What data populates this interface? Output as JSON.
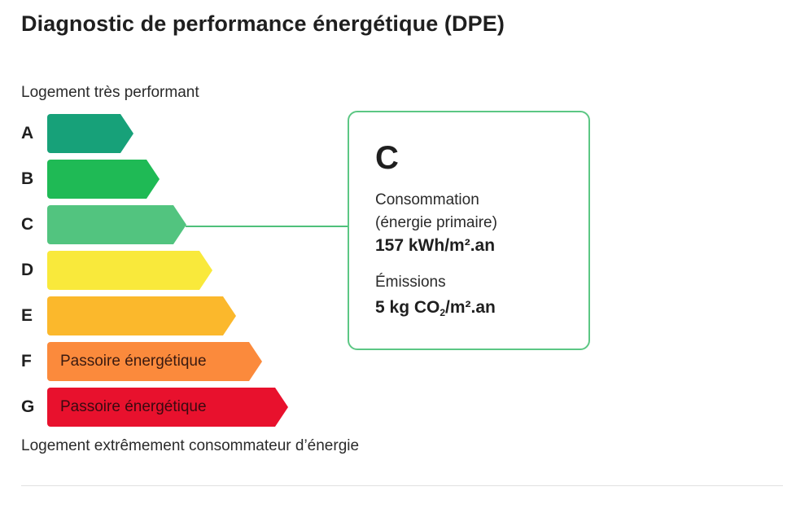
{
  "title": "Diagnostic de performance énergétique (DPE)",
  "caption_top": "Logement très performant",
  "caption_bottom": "Logement extrêmement consommateur d’énergie",
  "classes": [
    {
      "letter": "A",
      "color": "#17a179",
      "label": "",
      "width_frac": 0.33
    },
    {
      "letter": "B",
      "color": "#1fba55",
      "label": "",
      "width_frac": 0.43
    },
    {
      "letter": "C",
      "color": "#52c47f",
      "label": "",
      "width_frac": 0.53
    },
    {
      "letter": "D",
      "color": "#f9e93b",
      "label": "",
      "width_frac": 0.63
    },
    {
      "letter": "E",
      "color": "#fbb82c",
      "label": "",
      "width_frac": 0.72
    },
    {
      "letter": "F",
      "color": "#fb8a3c",
      "label": "Passoire énergétique",
      "width_frac": 0.82
    },
    {
      "letter": "G",
      "color": "#e8112d",
      "label": "Passoire énergétique",
      "width_frac": 0.92
    }
  ],
  "result": {
    "letter": "C",
    "consumption_label_1": "Consommation",
    "consumption_label_2": "(énergie primaire)",
    "consumption_value": "157 kWh/m².an",
    "emissions_label": "Émissions",
    "emissions_prefix": "5 kg CO",
    "emissions_sub": "2",
    "emissions_suffix": "/m².an"
  }
}
